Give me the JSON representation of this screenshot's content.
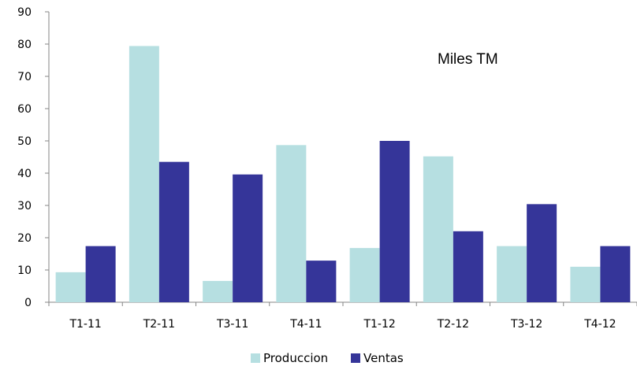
{
  "chart_data": {
    "type": "bar",
    "categories": [
      "T1-11",
      "T2-11",
      "T3-11",
      "T4-11",
      "T1-12",
      "T2-12",
      "T3-12",
      "T4-12"
    ],
    "series": [
      {
        "name": "Produccion",
        "color": "#b6dfe1",
        "values": [
          9.3,
          79.4,
          6.6,
          48.7,
          16.8,
          45.2,
          17.4,
          11.0
        ]
      },
      {
        "name": "Ventas",
        "color": "#353599",
        "values": [
          17.4,
          43.5,
          39.6,
          12.9,
          50.0,
          22.0,
          30.4,
          17.4
        ]
      }
    ],
    "annotation": "Miles TM",
    "ylim": [
      0,
      90
    ],
    "yticks": [
      0,
      10,
      20,
      30,
      40,
      50,
      60,
      70,
      80,
      90
    ],
    "grid": false,
    "legend_position": "bottom"
  }
}
